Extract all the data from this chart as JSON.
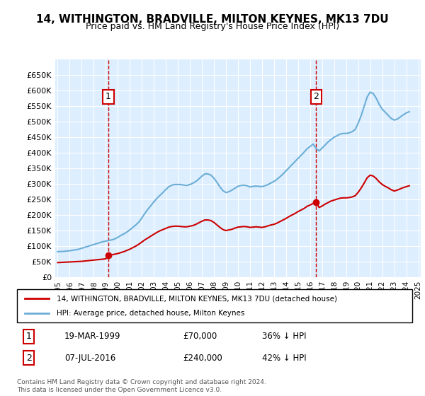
{
  "title": "14, WITHINGTON, BRADVILLE, MILTON KEYNES, MK13 7DU",
  "subtitle": "Price paid vs. HM Land Registry's House Price Index (HPI)",
  "legend_line1": "14, WITHINGTON, BRADVILLE, MILTON KEYNES, MK13 7DU (detached house)",
  "legend_line2": "HPI: Average price, detached house, Milton Keynes",
  "footnote": "Contains HM Land Registry data © Crown copyright and database right 2024.\nThis data is licensed under the Open Government Licence v3.0.",
  "transaction1_label": "1",
  "transaction1_date": "19-MAR-1999",
  "transaction1_price": "£70,000",
  "transaction1_hpi": "36% ↓ HPI",
  "transaction1_year": 1999.21,
  "transaction1_value": 70000,
  "transaction2_label": "2",
  "transaction2_date": "07-JUL-2016",
  "transaction2_price": "£240,000",
  "transaction2_hpi": "42% ↓ HPI",
  "transaction2_year": 2016.51,
  "transaction2_value": 240000,
  "hpi_color": "#6baed6",
  "price_color": "#cc0000",
  "marker_box_color": "#cc0000",
  "background_color": "#ddeeff",
  "plot_bg": "#ddeeff",
  "ylim": [
    0,
    680000
  ],
  "yticks": [
    0,
    50000,
    100000,
    150000,
    200000,
    250000,
    300000,
    350000,
    400000,
    450000,
    500000,
    550000,
    600000,
    650000
  ],
  "ytick_labels": [
    "£0",
    "£50K",
    "£100K",
    "£150K",
    "£200K",
    "£250K",
    "£300K",
    "£350K",
    "£400K",
    "£450K",
    "£500K",
    "£550K",
    "£600K",
    "£650K"
  ],
  "hpi_years": [
    1995.0,
    1995.25,
    1995.5,
    1995.75,
    1996.0,
    1996.25,
    1996.5,
    1996.75,
    1997.0,
    1997.25,
    1997.5,
    1997.75,
    1998.0,
    1998.25,
    1998.5,
    1998.75,
    1999.0,
    1999.25,
    1999.5,
    1999.75,
    2000.0,
    2000.25,
    2000.5,
    2000.75,
    2001.0,
    2001.25,
    2001.5,
    2001.75,
    2002.0,
    2002.25,
    2002.5,
    2002.75,
    2003.0,
    2003.25,
    2003.5,
    2003.75,
    2004.0,
    2004.25,
    2004.5,
    2004.75,
    2005.0,
    2005.25,
    2005.5,
    2005.75,
    2006.0,
    2006.25,
    2006.5,
    2006.75,
    2007.0,
    2007.25,
    2007.5,
    2007.75,
    2008.0,
    2008.25,
    2008.5,
    2008.75,
    2009.0,
    2009.25,
    2009.5,
    2009.75,
    2010.0,
    2010.25,
    2010.5,
    2010.75,
    2011.0,
    2011.25,
    2011.5,
    2011.75,
    2012.0,
    2012.25,
    2012.5,
    2012.75,
    2013.0,
    2013.25,
    2013.5,
    2013.75,
    2014.0,
    2014.25,
    2014.5,
    2014.75,
    2015.0,
    2015.25,
    2015.5,
    2015.75,
    2016.0,
    2016.25,
    2016.5,
    2016.75,
    2017.0,
    2017.25,
    2017.5,
    2017.75,
    2018.0,
    2018.25,
    2018.5,
    2018.75,
    2019.0,
    2019.25,
    2019.5,
    2019.75,
    2020.0,
    2020.25,
    2020.5,
    2020.75,
    2021.0,
    2021.25,
    2021.5,
    2021.75,
    2022.0,
    2022.25,
    2022.5,
    2022.75,
    2023.0,
    2023.25,
    2023.5,
    2023.75,
    2024.0,
    2024.25
  ],
  "hpi_values": [
    82000,
    82500,
    83000,
    84000,
    85000,
    86500,
    88000,
    90000,
    93000,
    96000,
    99000,
    102000,
    105000,
    108000,
    111000,
    114000,
    116000,
    118000,
    120000,
    123000,
    128000,
    134000,
    139000,
    145000,
    152000,
    160000,
    168000,
    177000,
    190000,
    205000,
    218000,
    230000,
    242000,
    253000,
    263000,
    272000,
    282000,
    291000,
    296000,
    298000,
    298000,
    298000,
    296000,
    295000,
    298000,
    302000,
    308000,
    316000,
    325000,
    332000,
    332000,
    328000,
    318000,
    305000,
    290000,
    278000,
    272000,
    275000,
    280000,
    286000,
    292000,
    295000,
    296000,
    294000,
    290000,
    292000,
    293000,
    292000,
    291000,
    294000,
    298000,
    303000,
    308000,
    315000,
    323000,
    332000,
    342000,
    352000,
    362000,
    372000,
    382000,
    392000,
    402000,
    413000,
    420000,
    428000,
    413000,
    406000,
    415000,
    425000,
    435000,
    443000,
    450000,
    455000,
    460000,
    462000,
    462000,
    464000,
    468000,
    475000,
    495000,
    520000,
    550000,
    580000,
    595000,
    590000,
    575000,
    555000,
    540000,
    530000,
    520000,
    510000,
    505000,
    508000,
    515000,
    522000,
    528000,
    532000
  ],
  "price_years": [
    1995.0,
    1995.25,
    1995.5,
    1995.75,
    1996.0,
    1996.25,
    1996.5,
    1996.75,
    1997.0,
    1997.25,
    1997.5,
    1997.75,
    1998.0,
    1998.25,
    1998.5,
    1998.75,
    1999.0,
    1999.25,
    1999.5,
    1999.75,
    2000.0,
    2000.25,
    2000.5,
    2000.75,
    2001.0,
    2001.25,
    2001.5,
    2001.75,
    2002.0,
    2002.25,
    2002.5,
    2002.75,
    2003.0,
    2003.25,
    2003.5,
    2003.75,
    2004.0,
    2004.25,
    2004.5,
    2004.75,
    2005.0,
    2005.25,
    2005.5,
    2005.75,
    2006.0,
    2006.25,
    2006.5,
    2006.75,
    2007.0,
    2007.25,
    2007.5,
    2007.75,
    2008.0,
    2008.25,
    2008.5,
    2008.75,
    2009.0,
    2009.25,
    2009.5,
    2009.75,
    2010.0,
    2010.25,
    2010.5,
    2010.75,
    2011.0,
    2011.25,
    2011.5,
    2011.75,
    2012.0,
    2012.25,
    2012.5,
    2012.75,
    2013.0,
    2013.25,
    2013.5,
    2013.75,
    2014.0,
    2014.25,
    2014.5,
    2014.75,
    2015.0,
    2015.25,
    2015.5,
    2015.75,
    2016.0,
    2016.25,
    2016.5,
    2016.75,
    2017.0,
    2017.25,
    2017.5,
    2017.75,
    2018.0,
    2018.25,
    2018.5,
    2018.75,
    2019.0,
    2019.25,
    2019.5,
    2019.75,
    2020.0,
    2020.25,
    2020.5,
    2020.75,
    2021.0,
    2021.25,
    2021.5,
    2021.75,
    2022.0,
    2022.25,
    2022.5,
    2022.75,
    2023.0,
    2023.25,
    2023.5,
    2023.75,
    2024.0,
    2024.25
  ],
  "price_values": [
    47000,
    47500,
    48000,
    48500,
    49000,
    49500,
    50000,
    50500,
    51000,
    52000,
    53000,
    54000,
    55000,
    56000,
    57000,
    58000,
    59000,
    70000,
    72000,
    74000,
    76000,
    79000,
    82000,
    86000,
    90000,
    95000,
    100000,
    106000,
    113000,
    120000,
    126000,
    132000,
    138000,
    144000,
    149000,
    153000,
    157000,
    161000,
    163000,
    164000,
    164000,
    163000,
    162000,
    162000,
    164000,
    166000,
    170000,
    175000,
    180000,
    184000,
    184000,
    182000,
    176000,
    168000,
    160000,
    153000,
    150000,
    152000,
    154000,
    158000,
    161000,
    162000,
    163000,
    162000,
    160000,
    161000,
    162000,
    161000,
    160000,
    162000,
    165000,
    168000,
    170000,
    174000,
    179000,
    184000,
    189000,
    195000,
    200000,
    205000,
    211000,
    216000,
    221000,
    228000,
    232000,
    237000,
    240000,
    224000,
    229000,
    235000,
    240000,
    245000,
    248000,
    251000,
    254000,
    255000,
    255000,
    256000,
    258000,
    262000,
    273000,
    287000,
    303000,
    320000,
    328000,
    325000,
    317000,
    306000,
    298000,
    292000,
    287000,
    281000,
    277000,
    280000,
    284000,
    288000,
    291000,
    294000
  ]
}
